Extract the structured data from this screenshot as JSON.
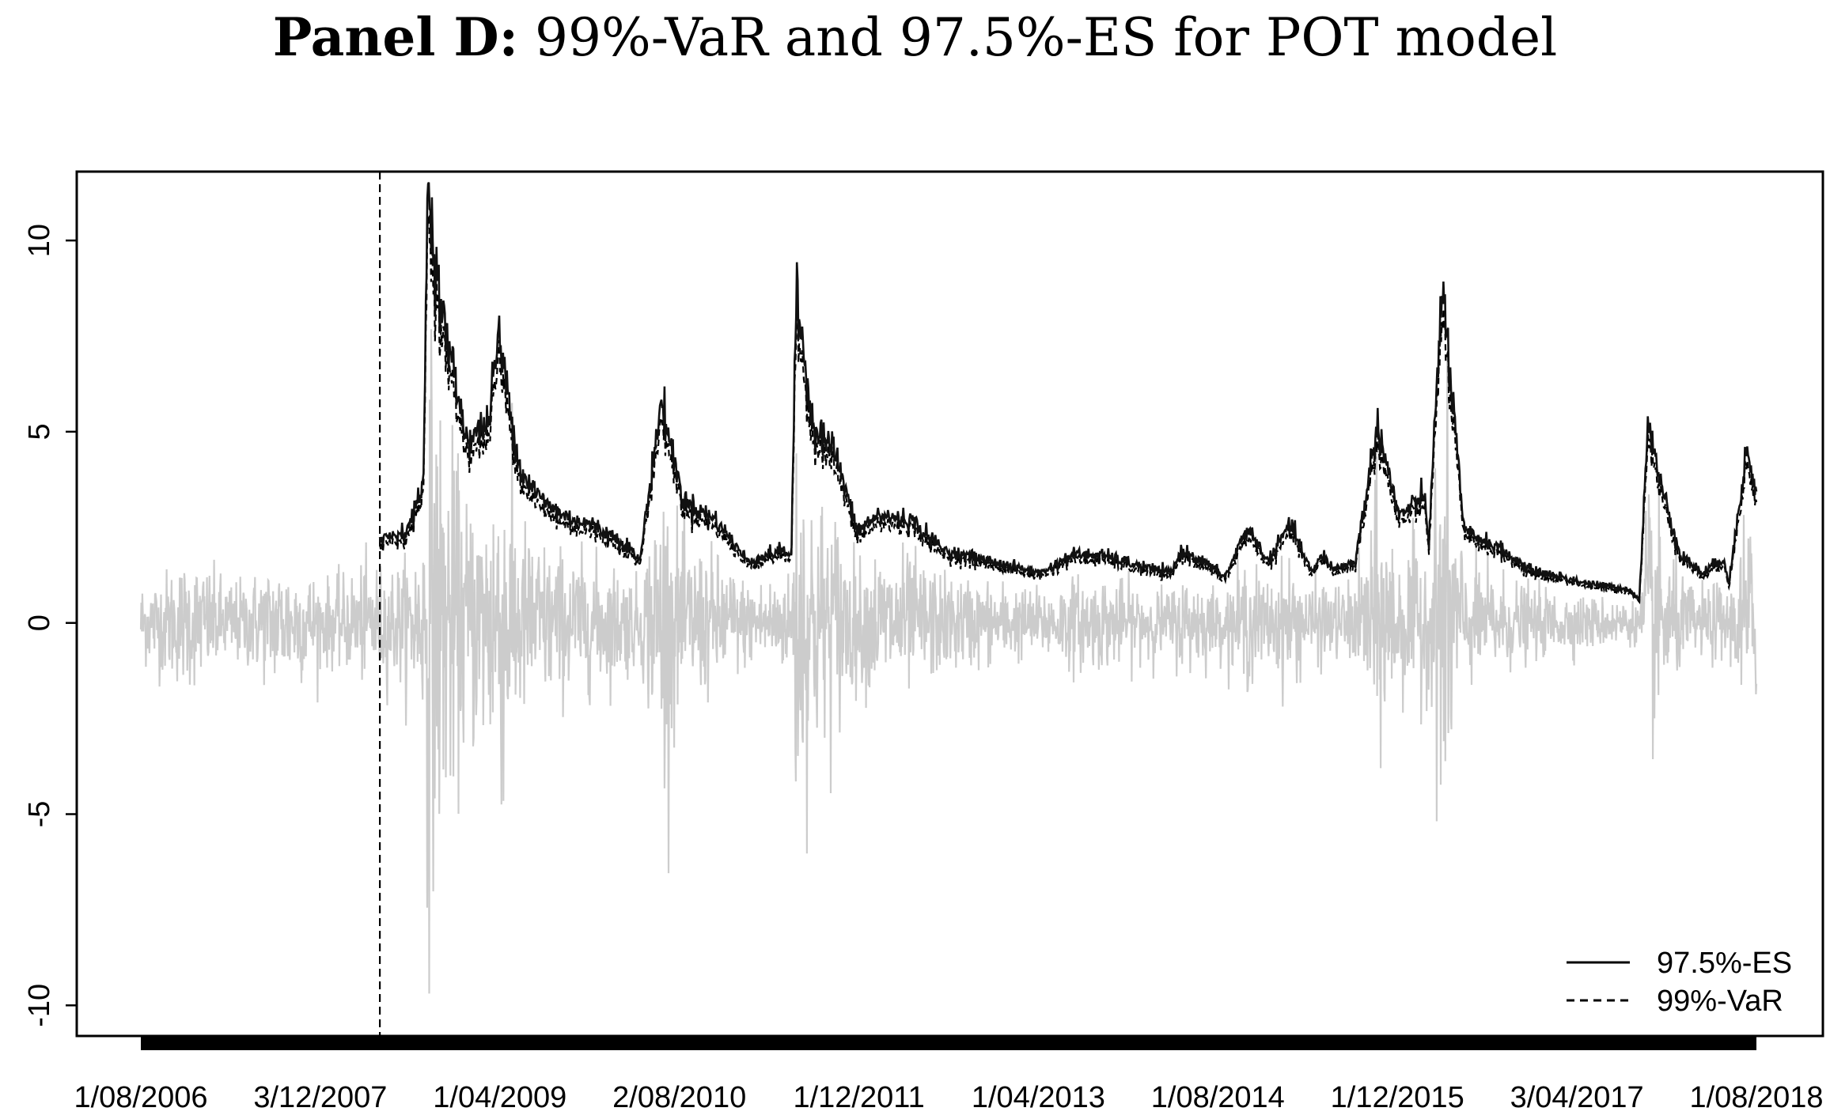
{
  "title": {
    "bold": "Panel D:",
    "rest": " 99%-VaR and 97.5%-ES for POT model"
  },
  "colors": {
    "returns": "#cccccc",
    "es": "#111111",
    "var": "#000000",
    "axis": "#000000"
  },
  "chart_data": {
    "type": "line",
    "title": "Panel D: 99%-VaR and 97.5%-ES for POT model",
    "xlabel": "",
    "ylabel": "",
    "x_tick_labels": [
      "1/08/2006",
      "3/12/2007",
      "1/04/2009",
      "2/08/2010",
      "1/12/2011",
      "1/04/2013",
      "1/08/2014",
      "1/12/2015",
      "3/04/2017",
      "1/08/2018"
    ],
    "y_ticks": [
      -10,
      -5,
      0,
      5,
      10
    ],
    "ylim": [
      -10.8,
      11.8
    ],
    "x_range": [
      "1/08/2006",
      "31/12/2018"
    ],
    "forecast_start": "2/06/2008",
    "grid": false,
    "legend_position": "bottom-right",
    "series": [
      {
        "name": "97.5%-ES",
        "style": "solid",
        "x": [
          "2/06/2008",
          "15/08/2008",
          "1/10/2008",
          "15/10/2008",
          "15/11/2008",
          "1/02/2009",
          "1/04/2009",
          "1/05/2009",
          "1/07/2009",
          "1/09/2009",
          "1/11/2009",
          "1/02/2010",
          "1/04/2010",
          "1/05/2010",
          "1/06/2010",
          "1/08/2010",
          "1/10/2010",
          "1/01/2011",
          "1/04/2011",
          "1/07/2011",
          "1/08/2011",
          "15/08/2011",
          "1/10/2011",
          "1/12/2011",
          "1/02/2012",
          "1/04/2012",
          "1/07/2012",
          "1/10/2012",
          "1/01/2013",
          "1/04/2013",
          "1/07/2013",
          "1/10/2013",
          "1/01/2014",
          "1/04/2014",
          "1/07/2014",
          "1/08/2014",
          "1/10/2014",
          "1/12/2014",
          "1/02/2015",
          "1/04/2015",
          "1/06/2015",
          "1/08/2015",
          "1/09/2015",
          "1/10/2015",
          "1/12/2015",
          "1/02/2016",
          "1/04/2016",
          "15/06/2016",
          "24/06/2016",
          "1/08/2016",
          "1/10/2016",
          "1/01/2017",
          "1/04/2017",
          "1/07/2017",
          "1/10/2017",
          "1/01/2018",
          "1/02/2018",
          "5/02/2018",
          "1/03/2018",
          "1/04/2018",
          "1/06/2018",
          "1/08/2018",
          "1/10/2018",
          "15/10/2018",
          "1/12/2018",
          "31/12/2018"
        ],
        "values": [
          2.2,
          2.4,
          3.5,
          11.5,
          8.5,
          4.8,
          5.2,
          7.5,
          4.0,
          3.2,
          2.8,
          2.5,
          2.2,
          2.0,
          1.6,
          5.8,
          3.2,
          2.7,
          1.6,
          1.9,
          1.8,
          8.5,
          5.2,
          4.5,
          2.4,
          2.8,
          2.7,
          1.9,
          1.7,
          1.5,
          1.3,
          1.8,
          1.75,
          1.5,
          1.3,
          1.9,
          1.6,
          1.2,
          2.5,
          1.6,
          2.6,
          1.3,
          1.8,
          1.4,
          1.6,
          5.2,
          2.8,
          3.3,
          2.0,
          8.9,
          2.4,
          2.0,
          1.4,
          1.2,
          1.0,
          0.9,
          0.7,
          0.5,
          5.3,
          3.8,
          1.8,
          1.3,
          1.7,
          1.0,
          4.5,
          3.4
        ]
      },
      {
        "name": "99%-VaR",
        "style": "dashed"
      }
    ]
  }
}
